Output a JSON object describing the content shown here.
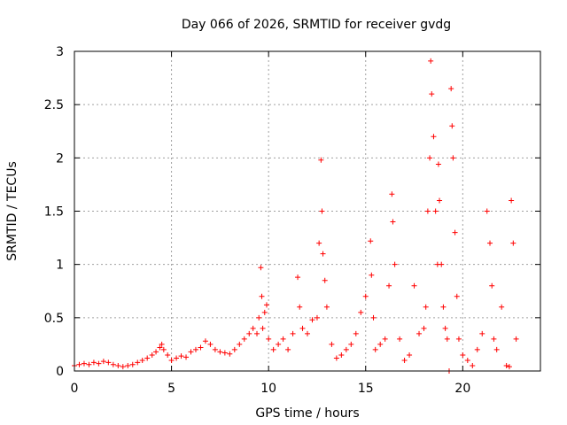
{
  "chart_data": {
    "type": "scatter",
    "title": "Day 066 of 2026, SRMTID for receiver gvdg",
    "xlabel": "GPS time / hours",
    "ylabel": "SRMTID / TECUs",
    "xlim": [
      0,
      24
    ],
    "ylim": [
      0,
      3
    ],
    "xticks": [
      0,
      5,
      10,
      15,
      20
    ],
    "xtick_labels": [
      "0",
      "5",
      "10",
      "15",
      "20"
    ],
    "yticks": [
      0,
      0.5,
      1,
      1.5,
      2,
      2.5,
      3
    ],
    "ytick_labels": [
      "0",
      "0.5",
      "1",
      "1.5",
      "2",
      "2.5",
      "3"
    ],
    "grid": true,
    "marker": "+",
    "color": "#ff0000",
    "series": [
      {
        "name": "gvdg",
        "x": [
          0.0,
          0.25,
          0.5,
          0.75,
          1.0,
          1.25,
          1.5,
          1.75,
          2.0,
          2.25,
          2.5,
          2.75,
          3.0,
          3.25,
          3.5,
          3.75,
          4.0,
          4.2,
          4.4,
          4.5,
          4.6,
          4.8,
          5.0,
          5.25,
          5.5,
          5.75,
          6.0,
          6.25,
          6.5,
          6.75,
          7.0,
          7.25,
          7.5,
          7.75,
          8.0,
          8.25,
          8.5,
          8.75,
          9.0,
          9.2,
          9.4,
          9.5,
          9.6,
          9.65,
          9.7,
          9.8,
          9.9,
          10.0,
          10.25,
          10.5,
          10.75,
          11.0,
          11.25,
          11.5,
          11.6,
          11.75,
          12.0,
          12.25,
          12.5,
          12.6,
          12.7,
          12.75,
          12.8,
          12.9,
          13.0,
          13.25,
          13.5,
          13.75,
          14.0,
          14.25,
          14.5,
          14.75,
          15.0,
          15.25,
          15.3,
          15.4,
          15.5,
          15.75,
          16.0,
          16.2,
          16.35,
          16.4,
          16.5,
          16.75,
          17.0,
          17.25,
          17.5,
          17.75,
          18.0,
          18.1,
          18.2,
          18.3,
          18.35,
          18.4,
          18.5,
          18.6,
          18.7,
          18.75,
          18.8,
          18.9,
          19.0,
          19.1,
          19.2,
          19.3,
          19.4,
          19.45,
          19.5,
          19.6,
          19.7,
          19.8,
          20.0,
          20.25,
          20.5,
          20.75,
          21.0,
          21.25,
          21.4,
          21.5,
          21.6,
          21.75,
          22.0,
          22.25,
          22.4,
          22.5,
          22.6,
          22.75
        ],
        "y": [
          0.05,
          0.06,
          0.07,
          0.06,
          0.08,
          0.07,
          0.09,
          0.08,
          0.06,
          0.05,
          0.04,
          0.05,
          0.06,
          0.08,
          0.1,
          0.12,
          0.15,
          0.18,
          0.22,
          0.25,
          0.2,
          0.15,
          0.1,
          0.12,
          0.14,
          0.13,
          0.18,
          0.2,
          0.22,
          0.28,
          0.25,
          0.2,
          0.18,
          0.17,
          0.16,
          0.2,
          0.25,
          0.3,
          0.35,
          0.4,
          0.35,
          0.5,
          0.97,
          0.7,
          0.4,
          0.55,
          0.62,
          0.3,
          0.2,
          0.25,
          0.3,
          0.2,
          0.35,
          0.88,
          0.6,
          0.4,
          0.35,
          0.48,
          0.5,
          1.2,
          1.98,
          1.5,
          1.1,
          0.85,
          0.6,
          0.25,
          0.12,
          0.15,
          0.2,
          0.25,
          0.35,
          0.55,
          0.7,
          1.22,
          0.9,
          0.5,
          0.2,
          0.25,
          0.3,
          0.8,
          1.66,
          1.4,
          1.0,
          0.3,
          0.1,
          0.15,
          0.8,
          0.35,
          0.4,
          0.6,
          1.5,
          2.0,
          2.91,
          2.6,
          2.2,
          1.5,
          1.0,
          1.94,
          1.6,
          1.0,
          0.6,
          0.4,
          0.3,
          0.0,
          2.65,
          2.3,
          2.0,
          1.3,
          0.7,
          0.3,
          0.15,
          0.1,
          0.05,
          0.2,
          0.35,
          1.5,
          1.2,
          0.8,
          0.3,
          0.2,
          0.6,
          0.05,
          0.04,
          1.6,
          1.2,
          0.3
        ]
      }
    ]
  }
}
